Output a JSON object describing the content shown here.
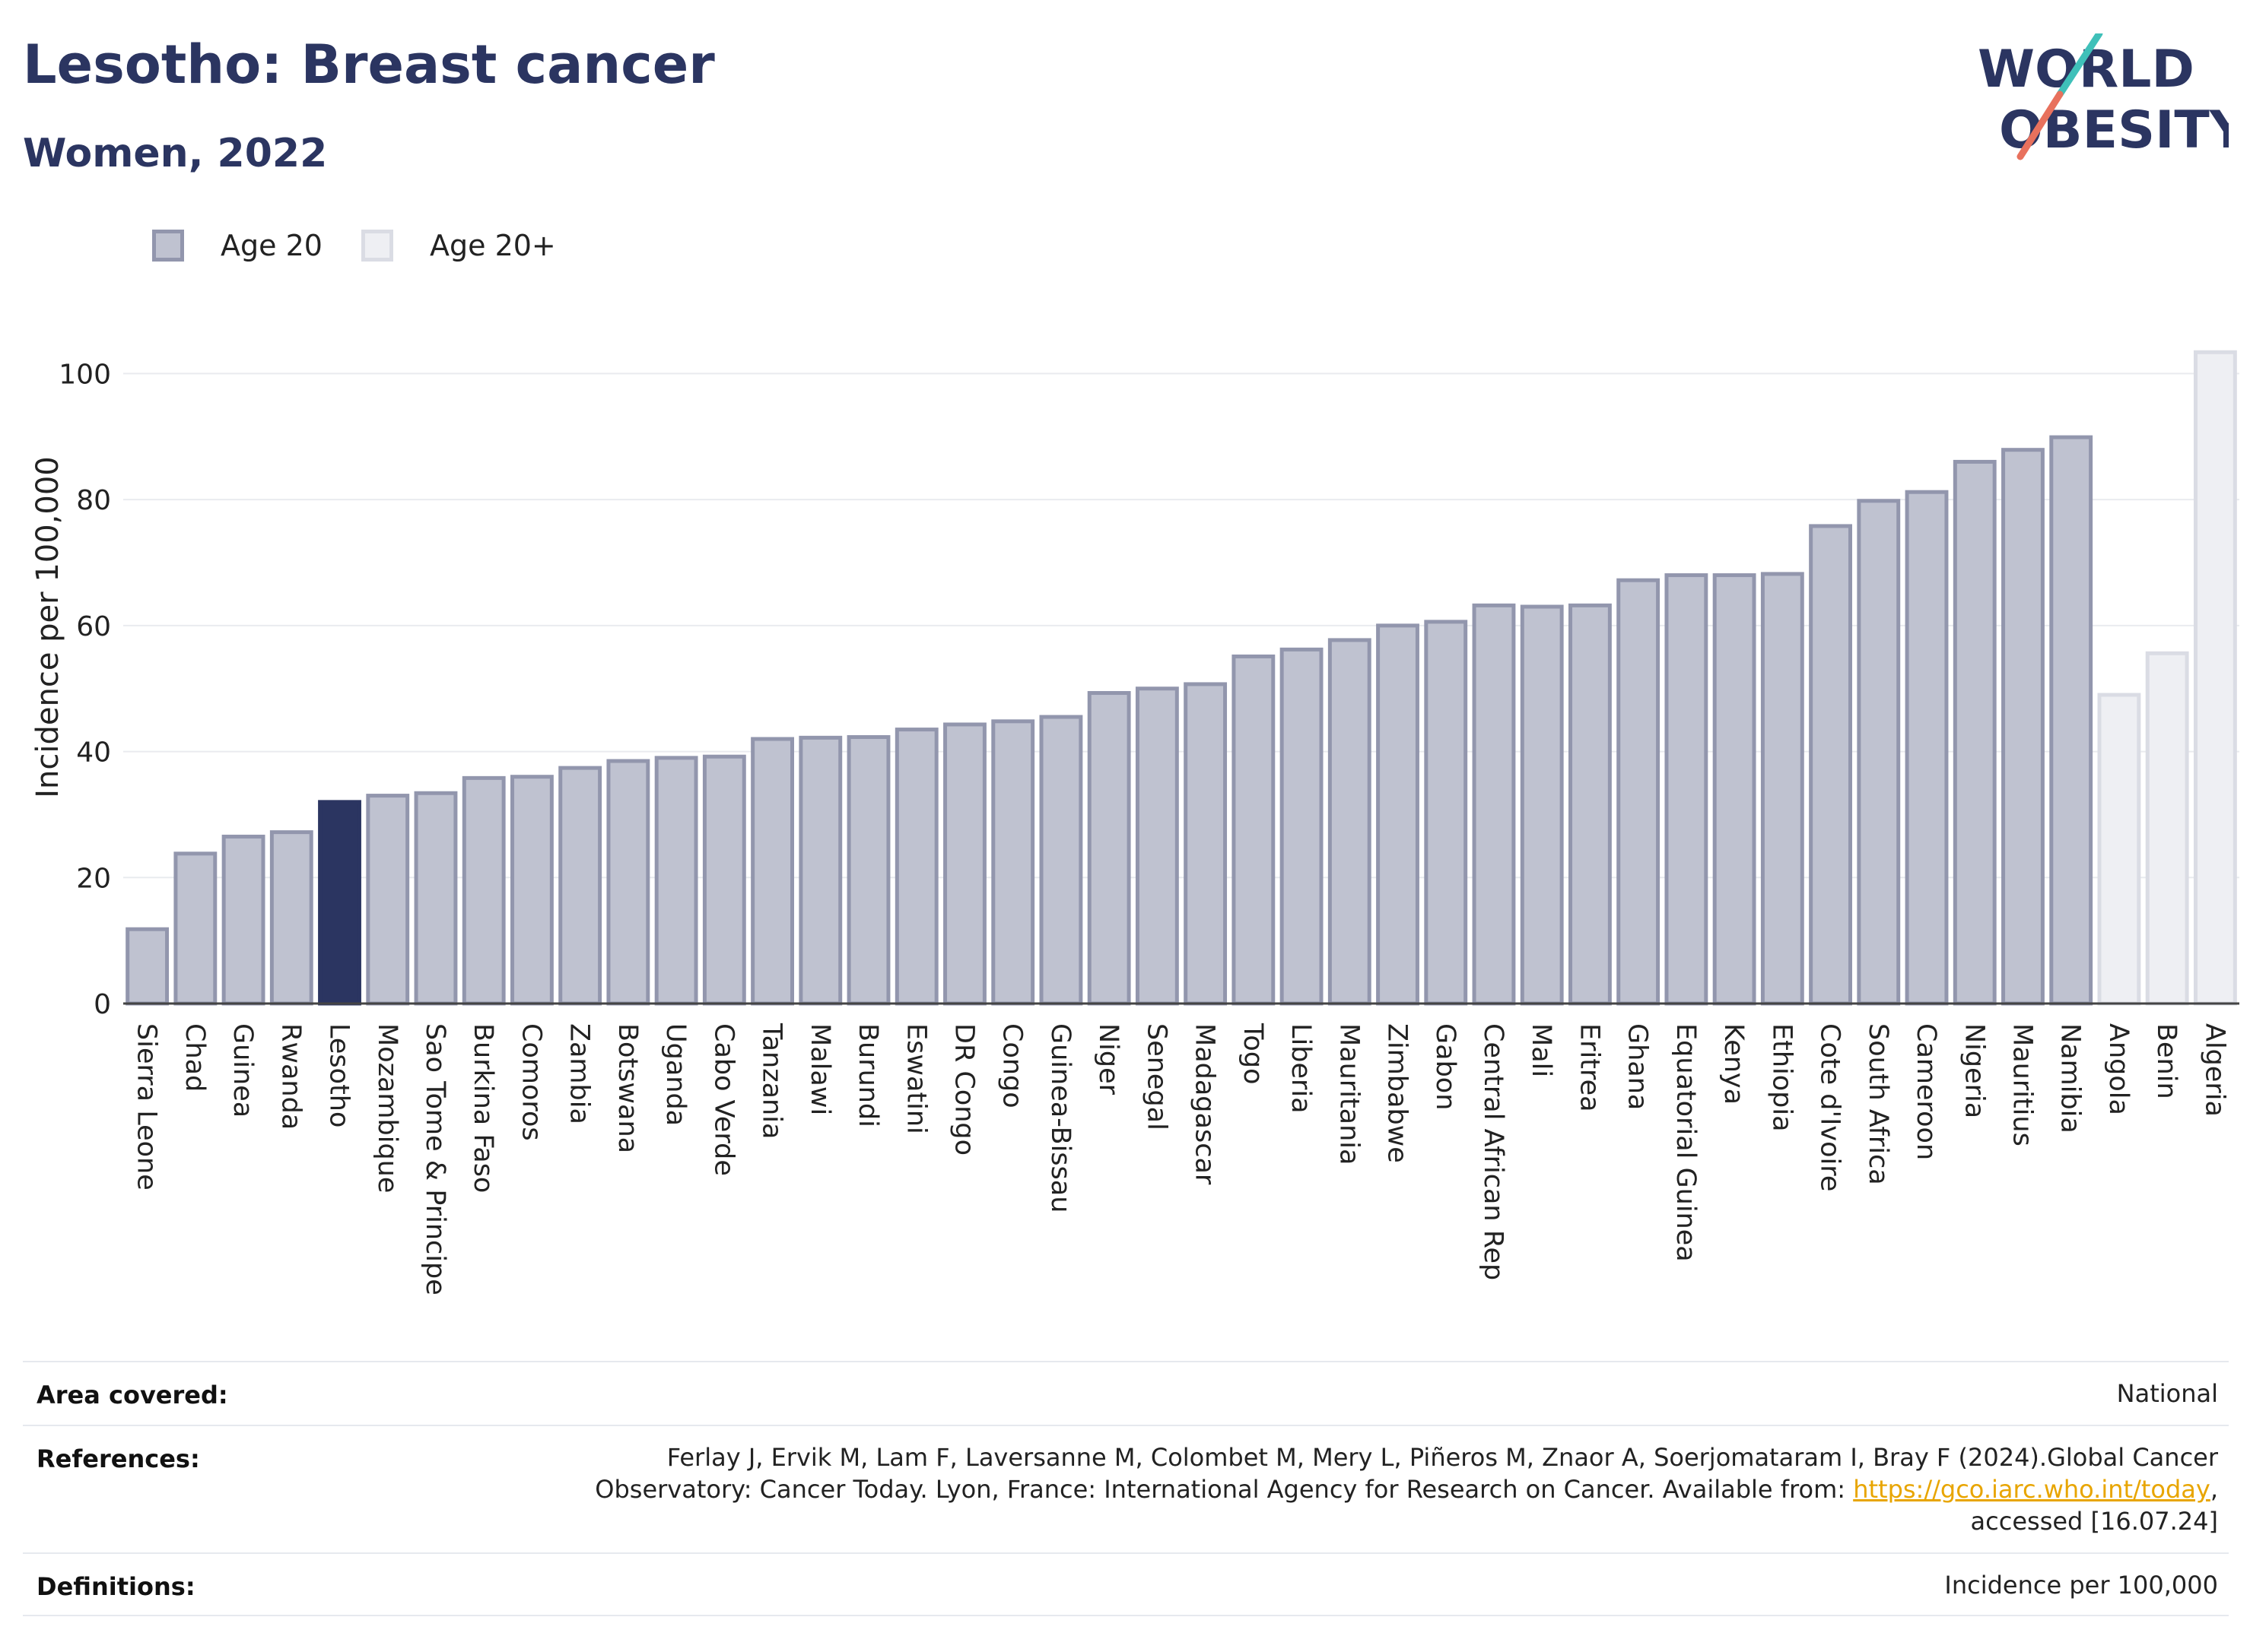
{
  "header": {
    "title": "Lesotho: Breast cancer",
    "subtitle": "Women, 2022"
  },
  "logo": {
    "line1": "WORLD",
    "line2": "OBESITY"
  },
  "colors": {
    "age20_fill": "#bfc2d0",
    "age20_stroke": "#9296ad",
    "highlight": "#2b3561",
    "age20plus_fill": "#eeeff3",
    "age20plus_stroke": "#dadce4",
    "logo_teal": "#3fc0b9",
    "logo_coral": "#e8715d"
  },
  "legend": [
    {
      "label": "Age 20"
    },
    {
      "label": "Age 20+"
    }
  ],
  "chart_data": {
    "type": "bar",
    "ylabel": "Incidence per 100,000",
    "ylim": [
      0,
      105
    ],
    "yticks": [
      0,
      20,
      40,
      60,
      80,
      100
    ],
    "grid": true,
    "legend_position": "top-left",
    "highlight": "Lesotho",
    "categories": [
      "Sierra Leone",
      "Chad",
      "Guinea",
      "Rwanda",
      "Lesotho",
      "Mozambique",
      "Sao Tome & Principe",
      "Burkina Faso",
      "Comoros",
      "Zambia",
      "Botswana",
      "Uganda",
      "Cabo Verde",
      "Tanzania",
      "Malawi",
      "Burundi",
      "Eswatini",
      "DR Congo",
      "Congo",
      "Guinea-Bissau",
      "Niger",
      "Senegal",
      "Madagascar",
      "Togo",
      "Liberia",
      "Mauritania",
      "Zimbabwe",
      "Gabon",
      "Central African Rep",
      "Mali",
      "Eritrea",
      "Ghana",
      "Equatorial Guinea",
      "Kenya",
      "Ethiopia",
      "Cote d'Ivoire",
      "South Africa",
      "Cameroon",
      "Nigeria",
      "Mauritius",
      "Namibia",
      "Angola",
      "Benin",
      "Algeria"
    ],
    "values": [
      11.8,
      23.8,
      26.5,
      27.2,
      32.0,
      33.0,
      33.4,
      35.8,
      36.0,
      37.4,
      38.5,
      39.0,
      39.2,
      42.0,
      42.2,
      42.3,
      43.5,
      44.3,
      44.8,
      45.5,
      49.3,
      50.0,
      50.7,
      55.1,
      56.2,
      57.7,
      60.0,
      60.6,
      63.2,
      63.0,
      63.2,
      67.2,
      68.0,
      68.0,
      68.2,
      75.8,
      79.8,
      81.2,
      86.0,
      87.9,
      89.9,
      49.0,
      55.6,
      103.4
    ],
    "series_group": [
      "Age 20",
      "Age 20",
      "Age 20",
      "Age 20",
      "Age 20",
      "Age 20",
      "Age 20",
      "Age 20",
      "Age 20",
      "Age 20",
      "Age 20",
      "Age 20",
      "Age 20",
      "Age 20",
      "Age 20",
      "Age 20",
      "Age 20",
      "Age 20",
      "Age 20",
      "Age 20",
      "Age 20",
      "Age 20",
      "Age 20",
      "Age 20",
      "Age 20",
      "Age 20",
      "Age 20",
      "Age 20",
      "Age 20",
      "Age 20",
      "Age 20",
      "Age 20",
      "Age 20",
      "Age 20",
      "Age 20",
      "Age 20",
      "Age 20",
      "Age 20",
      "Age 20",
      "Age 20",
      "Age 20",
      "Age 20+",
      "Age 20+",
      "Age 20+"
    ]
  },
  "info": {
    "area_label": "Area covered:",
    "area_value": "National",
    "references_label": "References:",
    "references_line1": "Ferlay J, Ervik M, Lam F, Laversanne M, Colombet M, Mery L, Piñeros M, Znaor A, Soerjomataram I, Bray F (2024).Global Cancer",
    "references_line2_pre": "Observatory: Cancer Today. Lyon, France: International Agency for Research on Cancer. Available from: ",
    "references_link": "https://gco.iarc.who.int/today",
    "references_line2_post": ",",
    "references_line3": "accessed [16.07.24]",
    "definitions_label": "Definitions:",
    "definitions_value": "Incidence per 100,000"
  }
}
